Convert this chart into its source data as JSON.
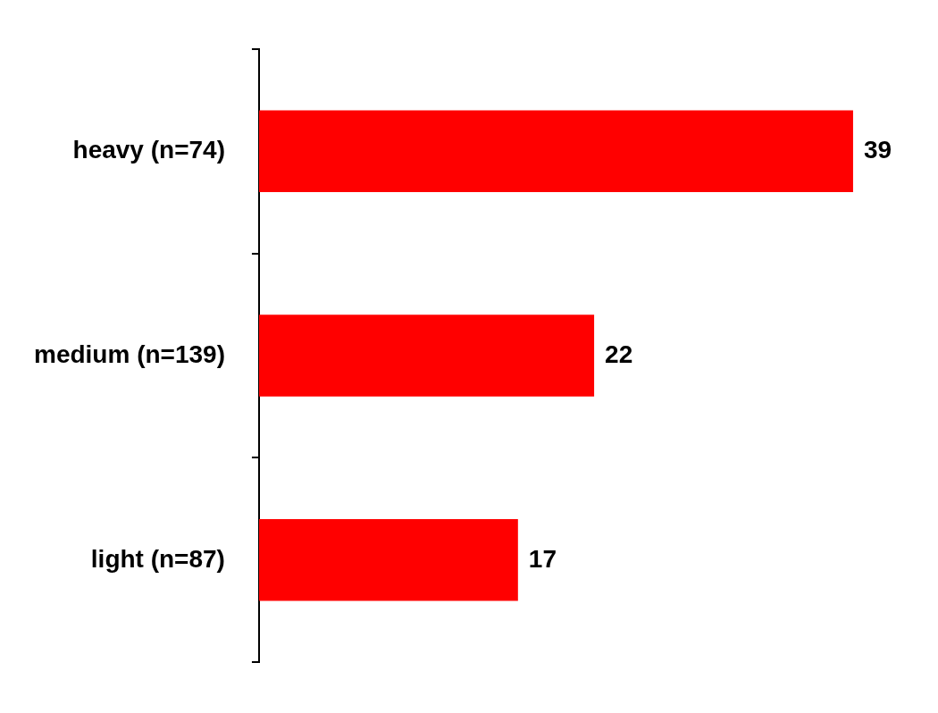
{
  "chart_data": {
    "type": "bar",
    "orientation": "horizontal",
    "categories": [
      "heavy (n=74)",
      "medium (n=139)",
      "light (n=87)"
    ],
    "values": [
      39,
      22,
      17
    ],
    "color": "#ff0000",
    "data_labels": true,
    "grid": false,
    "legend": false
  }
}
